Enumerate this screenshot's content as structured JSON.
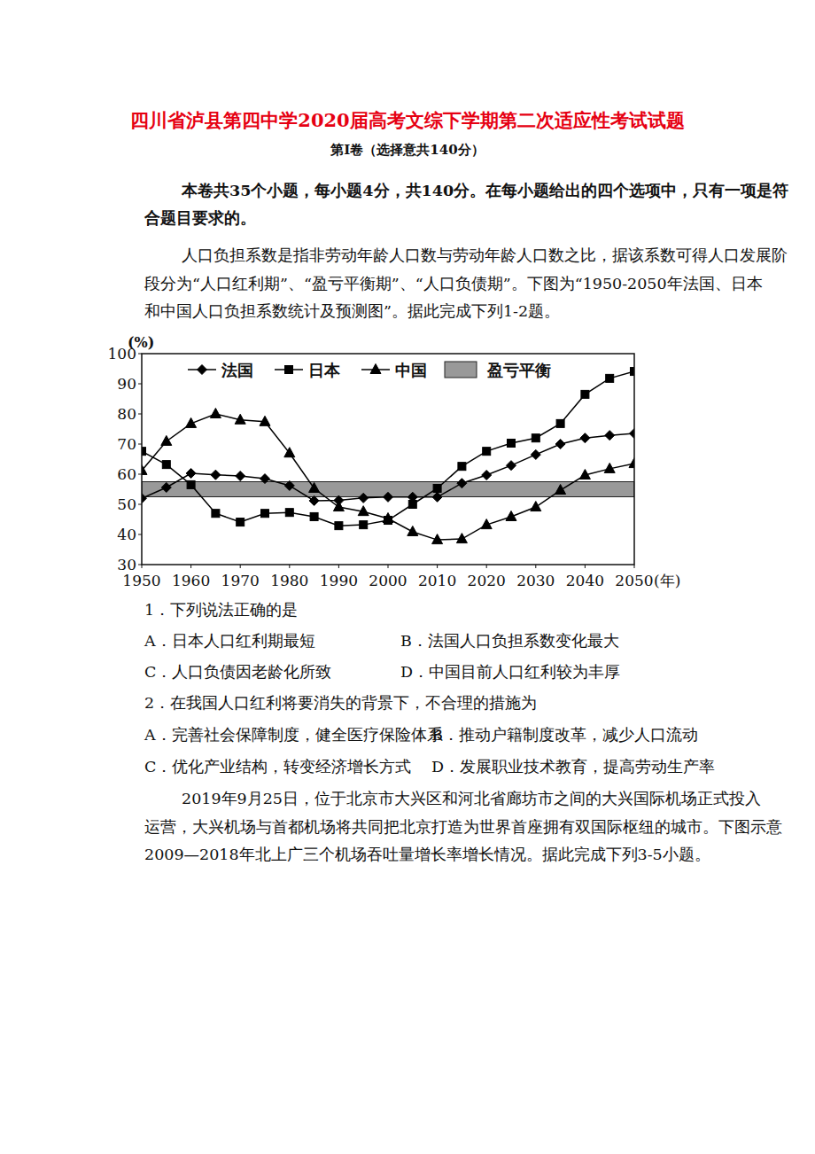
{
  "header": {
    "title": "四川省泸县第四中学2020届高考文综下学期第二次适应性考试试题",
    "section": "第Ⅰ卷（选择意共140分）"
  },
  "instructions": [
    "本卷共35个小题，每小题4分，共140分。在每小题给出的四个选项中，只有一项是符",
    "合题目要求的。"
  ],
  "intro": [
    "人口负担系数是指非劳动年龄人口数与劳动年龄人口数之比，据该系数可得人口发展阶",
    "段分为“人口红利期”、“盈亏平衡期”、“人口负债期”。下图为“1950-2050年法国、日本",
    "和中国人口负担系数统计及预测图”。据此完成下列1-2题。"
  ],
  "chart_data": {
    "type": "line",
    "ylabel": "(%)",
    "xlabel": "(年)",
    "x": [
      1950,
      1955,
      1960,
      1965,
      1970,
      1975,
      1980,
      1985,
      1990,
      1995,
      2000,
      2005,
      2010,
      2015,
      2020,
      2025,
      2030,
      2035,
      2040,
      2045,
      2050
    ],
    "series": [
      {
        "name": "法国",
        "color": "#000000",
        "marker": "diamond",
        "values": [
          52,
          55.6,
          60.3,
          59.8,
          59.4,
          58.5,
          56.2,
          51.2,
          51.3,
          52.1,
          52.4,
          52.4,
          52.4,
          57,
          59.7,
          62.9,
          66.5,
          70,
          72,
          72.9,
          73.5
        ]
      },
      {
        "name": "日本",
        "color": "#000000",
        "marker": "square",
        "values": [
          67.6,
          63.2,
          56.5,
          47,
          44.1,
          47,
          47.3,
          45.9,
          42.9,
          43.2,
          44.7,
          50,
          55.3,
          62.6,
          67.6,
          70.3,
          72,
          76.8,
          86.5,
          91.8,
          94.1
        ]
      },
      {
        "name": "中国",
        "color": "#000000",
        "marker": "triangle",
        "values": [
          61.2,
          70.9,
          76.8,
          80,
          78,
          77.4,
          67,
          55.3,
          49.1,
          47.6,
          45.3,
          40.9,
          38.2,
          38.5,
          43.2,
          45.9,
          49.1,
          54.7,
          59.7,
          61.8,
          63.5
        ]
      }
    ],
    "band": {
      "name": "盈亏平衡",
      "range": [
        52.5,
        57.5
      ],
      "color": "#999999"
    },
    "xlim": [
      1950,
      2050
    ],
    "xticks": [
      1950,
      1960,
      1970,
      1980,
      1990,
      2000,
      2010,
      2020,
      2030,
      2040,
      2050
    ],
    "ylim": [
      30,
      100
    ],
    "yticks": [
      30,
      40,
      50,
      60,
      70,
      80,
      90,
      100
    ],
    "grid": false,
    "legend": "top"
  },
  "questions": [
    {
      "stem": "1．下列说法正确的是",
      "options": [
        "A．日本人口红利期最短",
        "B．法国人口负担系数变化最大",
        "C．人口负债因老龄化所致",
        "D．中国目前人口红利较为丰厚"
      ]
    },
    {
      "stem": "2．在我国人口红利将要消失的背景下，不合理的措施为",
      "options": [
        "A．完善社会保障制度，健全医疗保险体系",
        "B．推动户籍制度改革，减少人口流动",
        "C．优化产业结构，转变经济增长方式",
        "D．发展职业技术教育，提高劳动生产率"
      ]
    }
  ],
  "passage": [
    "2019年9月25日，位于北京市大兴区和河北省廊坊市之间的大兴国际机场正式投入",
    "运营，大兴机场与首都机场将共同把北京打造为世界首座拥有双国际枢纽的城市。下图示意",
    "2009—2018年北上广三个机场吞吐量增长率增长情况。据此完成下列3-5小题。"
  ]
}
